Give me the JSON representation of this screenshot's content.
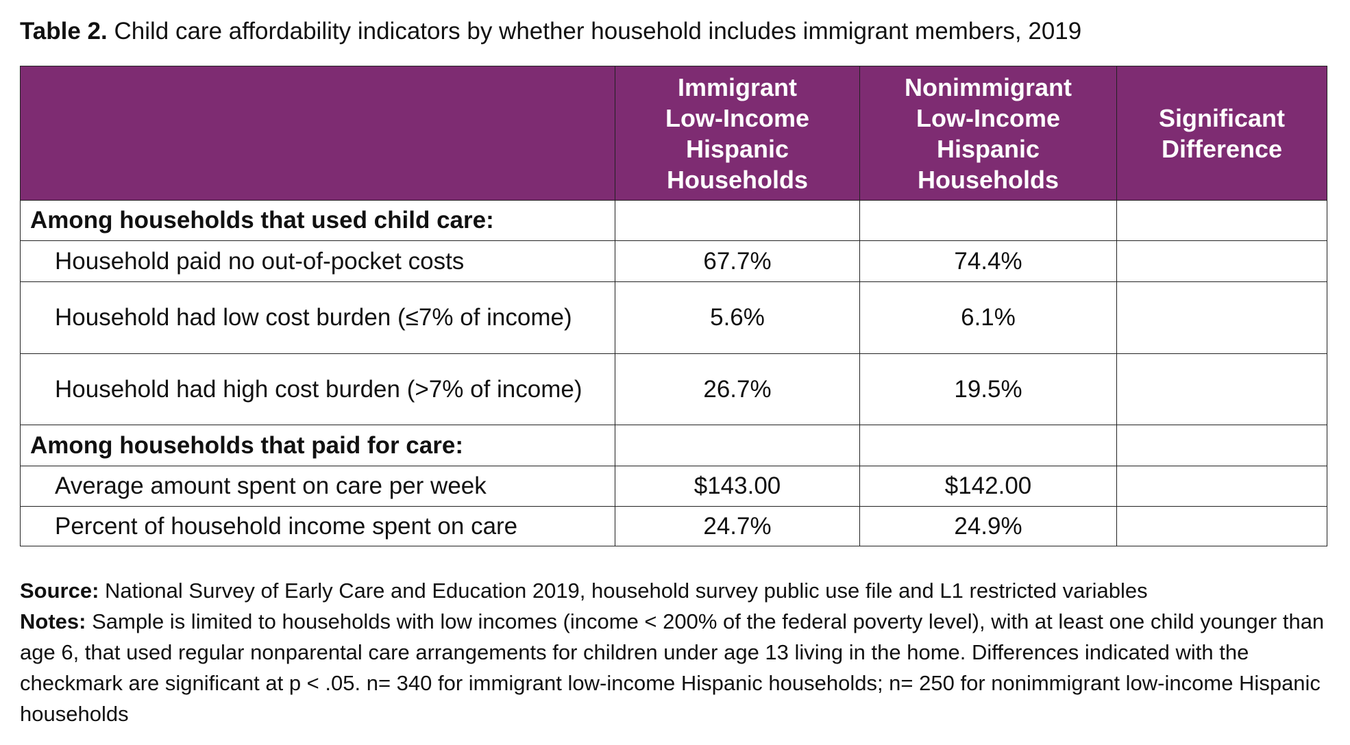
{
  "title": {
    "label": "Table 2.",
    "text": "Child care affordability indicators by whether household includes immigrant members, 2019"
  },
  "table": {
    "columns": [
      [
        "Immigrant",
        "Low-Income",
        "Hispanic",
        "Households"
      ],
      [
        "Nonimmigrant",
        "Low-Income",
        "Hispanic",
        "Households"
      ],
      [
        "Significant",
        "Difference"
      ]
    ],
    "sections": [
      {
        "heading": "Among households that used child care:",
        "rows": [
          {
            "label": "Household paid no out-of-pocket costs",
            "cells": [
              "67.7%",
              "74.4%"
            ]
          },
          {
            "label": "Household had low cost burden (≤7% of income)",
            "cells": [
              "5.6%",
              "6.1%"
            ]
          },
          {
            "label": "Household had high cost burden (>7% of income)",
            "cells": [
              "26.7%",
              "19.5%"
            ]
          }
        ]
      },
      {
        "heading": "Among households that paid for care:",
        "rows": [
          {
            "label": "Average amount spent on care per week",
            "cells": [
              "$143.00",
              "$142.00"
            ]
          },
          {
            "label": "Percent of household income spent on care",
            "cells": [
              "24.7%",
              "24.9%"
            ]
          }
        ]
      }
    ]
  },
  "source": {
    "label": "Source:",
    "text": "National Survey of Early Care and Education 2019, household survey public use file and L1 restricted variables"
  },
  "notes": {
    "label": "Notes:",
    "text": "Sample is limited to households with low incomes (income < 200% of the federal poverty level), with at least one child younger than age 6, that used regular nonparental care arrangements for children under age 13 living in the home. Differences indicated with the checkmark are significant at p < .05. n= 340 for immigrant low-income Hispanic households; n= 250 for nonimmigrant low-income Hispanic households"
  }
}
